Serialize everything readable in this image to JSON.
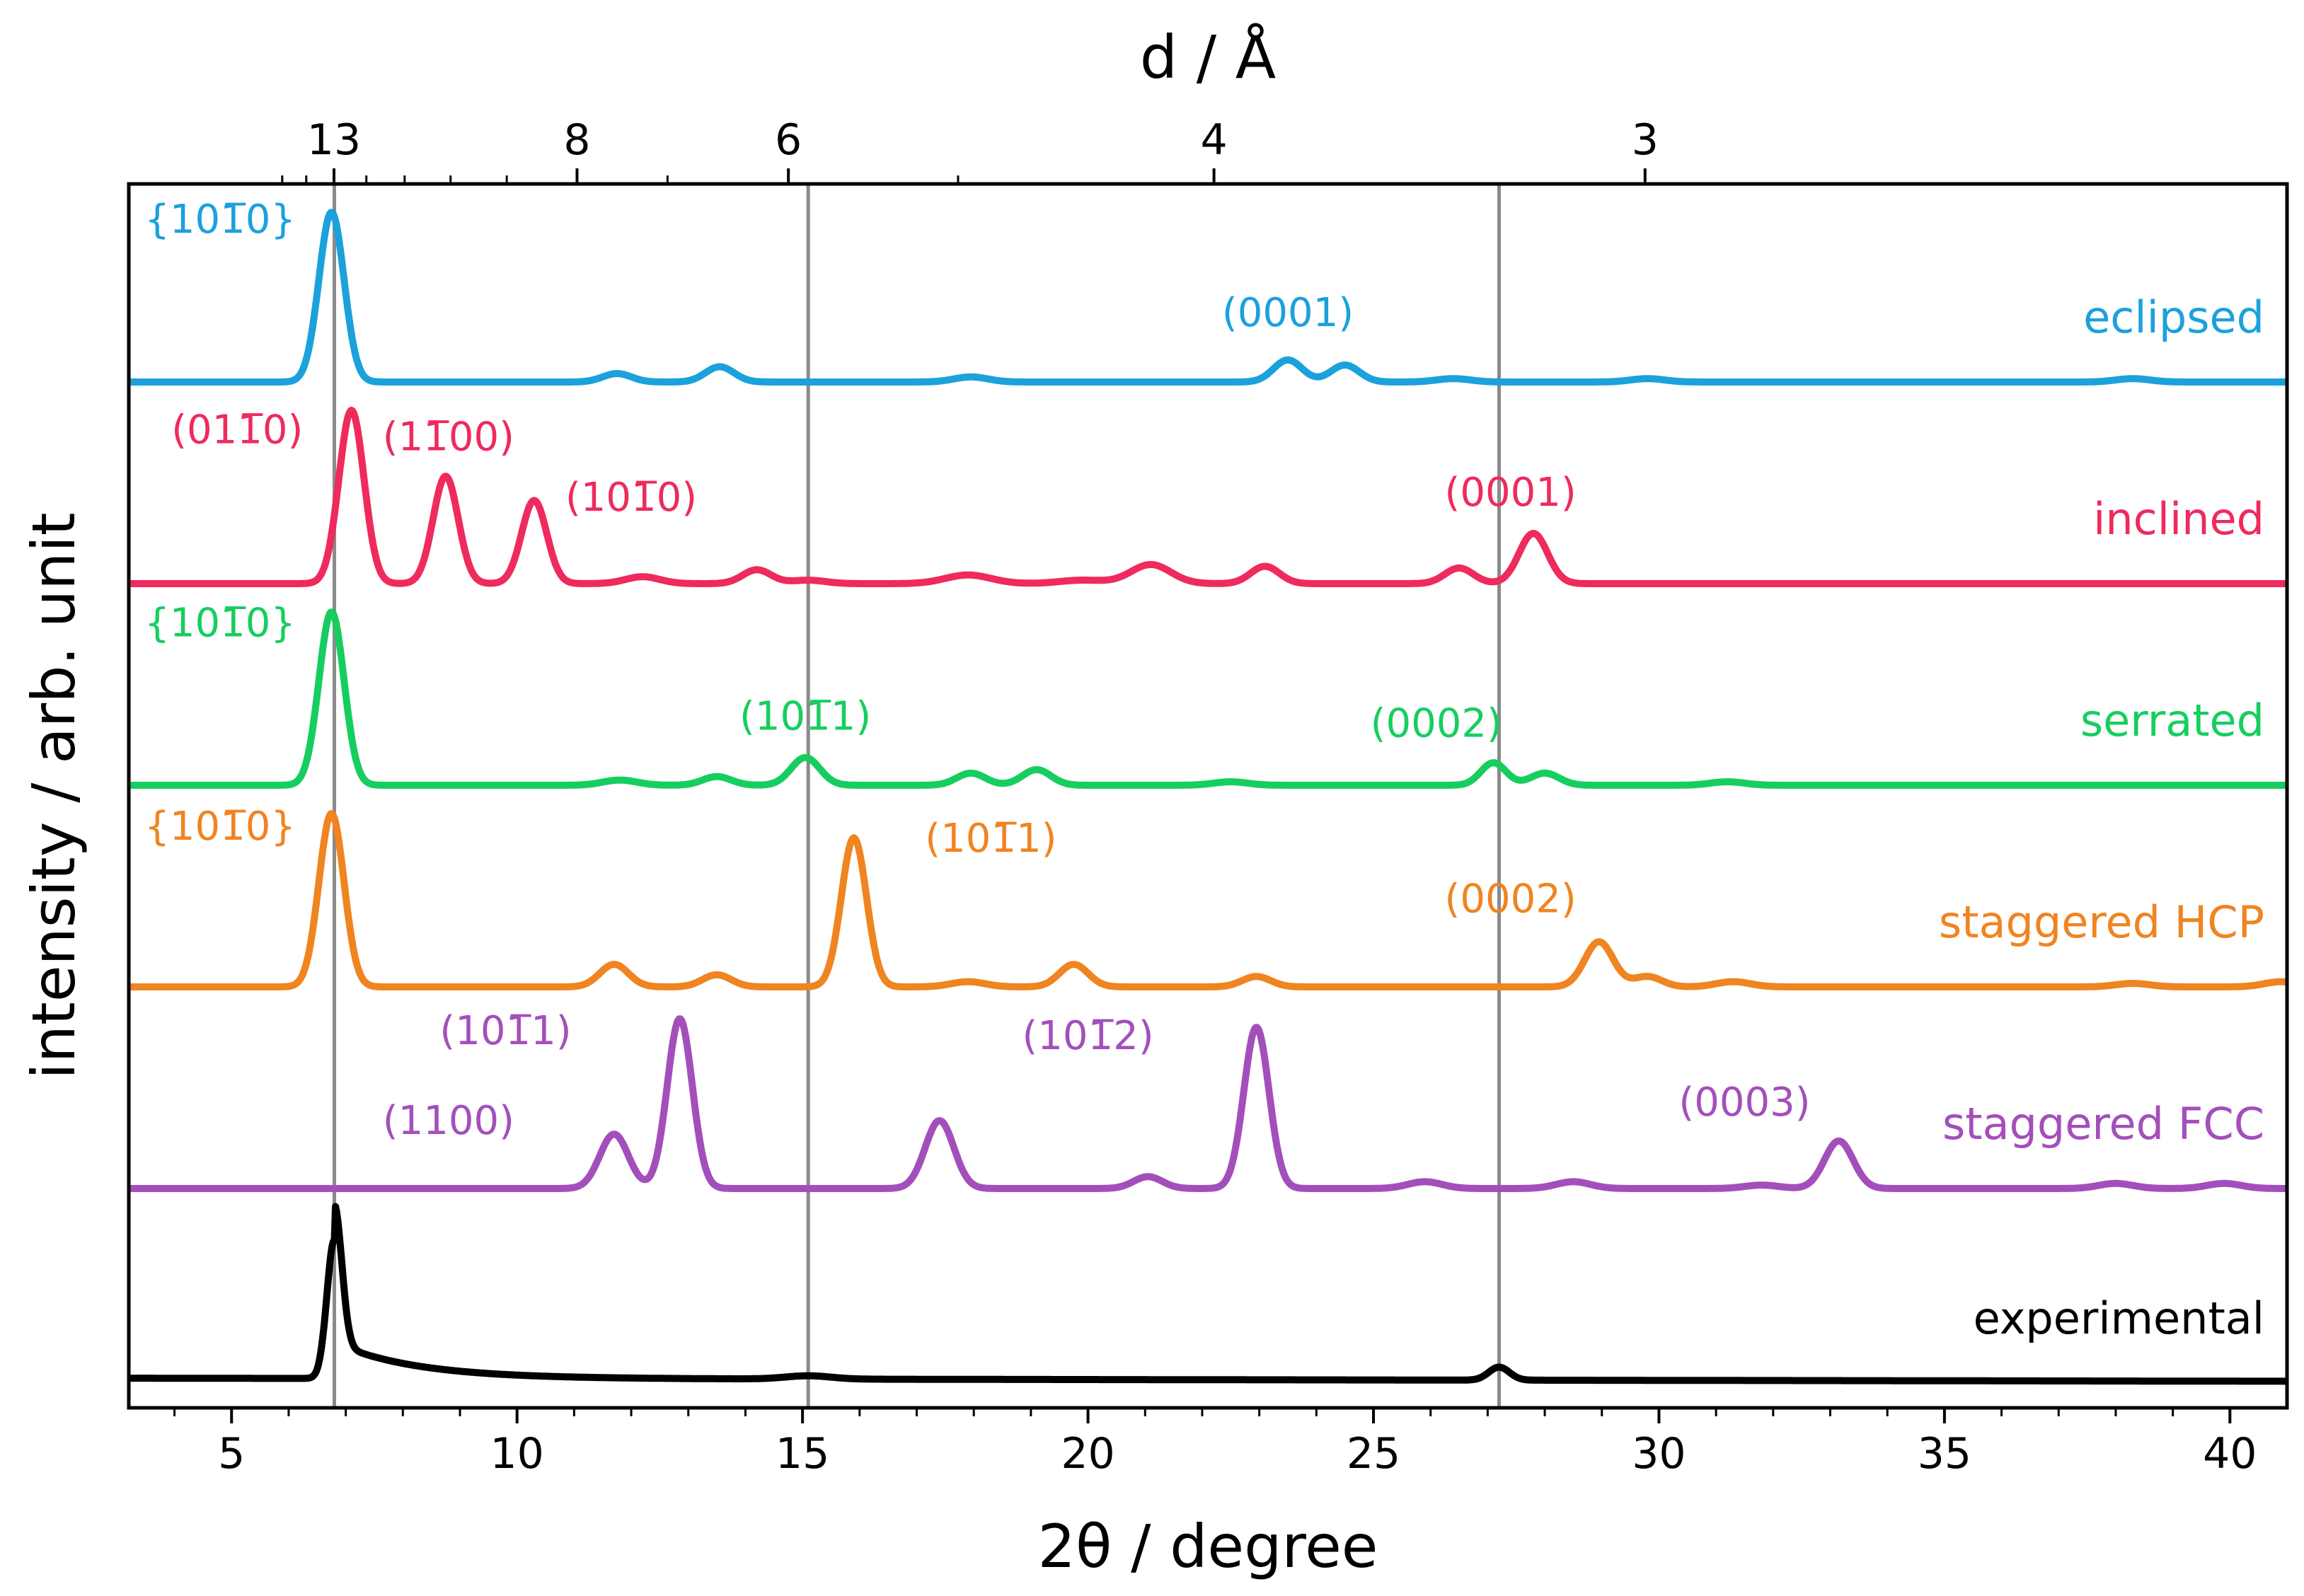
{
  "chart_data": {
    "type": "line",
    "title": "",
    "xlabel": "2θ / degree",
    "ylabel": "intensity / arb. unit",
    "top_xlabel": "d / Å",
    "xlim": [
      3.2,
      41
    ],
    "x_ticks": [
      5,
      10,
      15,
      20,
      25,
      30,
      35,
      40
    ],
    "x_tick_labels": [
      "5",
      "10",
      "15",
      "20",
      "25",
      "30",
      "35",
      "40"
    ],
    "x_minor_ticks": [
      4,
      6,
      7,
      8,
      9,
      11,
      12,
      13,
      14,
      16,
      17,
      18,
      19,
      21,
      22,
      23,
      24,
      26,
      27,
      28,
      29,
      31,
      32,
      33,
      34,
      36,
      37,
      38,
      39
    ],
    "top_ticks_d": [
      13,
      8,
      6,
      4,
      3
    ],
    "top_tick_labels": [
      "13",
      "8",
      "6",
      "4",
      "3"
    ],
    "top_minor_ticks_d": [
      15,
      14,
      12,
      11,
      10,
      9,
      7,
      5
    ],
    "reference_lines_2theta": [
      6.8,
      15.1,
      27.2
    ],
    "series": [
      {
        "name": "eclipsed",
        "color": "#1ba1dc",
        "peaks": [
          [
            6.75,
            1.0,
            0.22
          ],
          [
            11.75,
            0.05,
            0.25
          ],
          [
            13.55,
            0.09,
            0.25
          ],
          [
            17.95,
            0.03,
            0.3
          ],
          [
            23.5,
            0.13,
            0.25
          ],
          [
            24.5,
            0.1,
            0.25
          ],
          [
            26.4,
            0.02,
            0.3
          ],
          [
            29.8,
            0.02,
            0.3
          ],
          [
            38.3,
            0.02,
            0.3
          ]
        ],
        "labels": [
          {
            "text": "{101̅0}",
            "x": 4.8,
            "y": 0.88
          },
          {
            "text": "(0001)",
            "x": 23.5,
            "y": 0.33
          }
        ]
      },
      {
        "name": "inclined",
        "color": "#ef2a5d",
        "peaks": [
          [
            7.1,
            1.0,
            0.22
          ],
          [
            8.75,
            0.62,
            0.22
          ],
          [
            10.3,
            0.48,
            0.22
          ],
          [
            12.2,
            0.04,
            0.3
          ],
          [
            14.2,
            0.08,
            0.25
          ],
          [
            15.1,
            0.02,
            0.3
          ],
          [
            17.9,
            0.05,
            0.4
          ],
          [
            19.9,
            0.02,
            0.4
          ],
          [
            21.1,
            0.11,
            0.35
          ],
          [
            23.1,
            0.1,
            0.25
          ],
          [
            26.5,
            0.09,
            0.25
          ],
          [
            27.8,
            0.29,
            0.25
          ]
        ],
        "labels": [
          {
            "text": "(011̅0)",
            "x": 5.1,
            "y": 0.81
          },
          {
            "text": "(11̅00)",
            "x": 8.8,
            "y": 0.77
          },
          {
            "text": "(101̅0)",
            "x": 12.0,
            "y": 0.42
          },
          {
            "text": "(0001)",
            "x": 27.4,
            "y": 0.45
          }
        ]
      },
      {
        "name": "serrated",
        "color": "#16ce5f",
        "peaks": [
          [
            6.75,
            1.0,
            0.22
          ],
          [
            11.8,
            0.03,
            0.3
          ],
          [
            13.5,
            0.05,
            0.25
          ],
          [
            15.05,
            0.16,
            0.25
          ],
          [
            17.95,
            0.07,
            0.25
          ],
          [
            19.1,
            0.09,
            0.25
          ],
          [
            22.5,
            0.02,
            0.3
          ],
          [
            27.1,
            0.13,
            0.22
          ],
          [
            28.0,
            0.07,
            0.25
          ],
          [
            31.2,
            0.02,
            0.3
          ]
        ],
        "labels": [
          {
            "text": "{101̅0}",
            "x": 4.8,
            "y": 0.86
          },
          {
            "text": "(101̅1)",
            "x": 15.05,
            "y": 0.32
          },
          {
            "text": "(0002)",
            "x": 26.1,
            "y": 0.28
          }
        ]
      },
      {
        "name": "staggered HCP",
        "color": "#f08421",
        "peaks": [
          [
            6.75,
            1.0,
            0.22
          ],
          [
            11.7,
            0.13,
            0.25
          ],
          [
            13.5,
            0.07,
            0.25
          ],
          [
            15.9,
            0.86,
            0.22
          ],
          [
            17.9,
            0.03,
            0.3
          ],
          [
            19.75,
            0.13,
            0.25
          ],
          [
            22.95,
            0.06,
            0.25
          ],
          [
            28.95,
            0.26,
            0.25
          ],
          [
            29.8,
            0.06,
            0.25
          ],
          [
            31.3,
            0.03,
            0.3
          ],
          [
            38.3,
            0.02,
            0.3
          ],
          [
            40.9,
            0.03,
            0.3
          ]
        ],
        "labels": [
          {
            "text": "{101̅0}",
            "x": 4.8,
            "y": 0.85
          },
          {
            "text": "(101̅1)",
            "x": 18.3,
            "y": 0.78
          },
          {
            "text": "(0002)",
            "x": 27.4,
            "y": 0.43
          }
        ]
      },
      {
        "name": "staggered FCC",
        "color": "#a34fbb",
        "peaks": [
          [
            11.7,
            0.32,
            0.25
          ],
          [
            12.85,
            1.0,
            0.22
          ],
          [
            17.4,
            0.4,
            0.25
          ],
          [
            21.05,
            0.07,
            0.25
          ],
          [
            22.95,
            0.95,
            0.22
          ],
          [
            25.9,
            0.04,
            0.3
          ],
          [
            28.5,
            0.04,
            0.3
          ],
          [
            31.8,
            0.02,
            0.3
          ],
          [
            33.15,
            0.28,
            0.25
          ],
          [
            38.0,
            0.03,
            0.3
          ],
          [
            39.9,
            0.03,
            0.3
          ]
        ],
        "labels": [
          {
            "text": "(101̅1)",
            "x": 9.8,
            "y": 0.85
          },
          {
            "text": "(1100)",
            "x": 8.8,
            "y": 0.32
          },
          {
            "text": "(101̅2)",
            "x": 20.0,
            "y": 0.82
          },
          {
            "text": "(0003)",
            "x": 31.5,
            "y": 0.43
          }
        ]
      },
      {
        "name": "experimental",
        "color": "#000000",
        "peaks": [
          [
            6.8,
            0.85,
            0.13
          ],
          [
            27.2,
            0.08,
            0.18
          ],
          [
            15.1,
            0.02,
            0.4
          ]
        ],
        "labels": []
      }
    ]
  }
}
